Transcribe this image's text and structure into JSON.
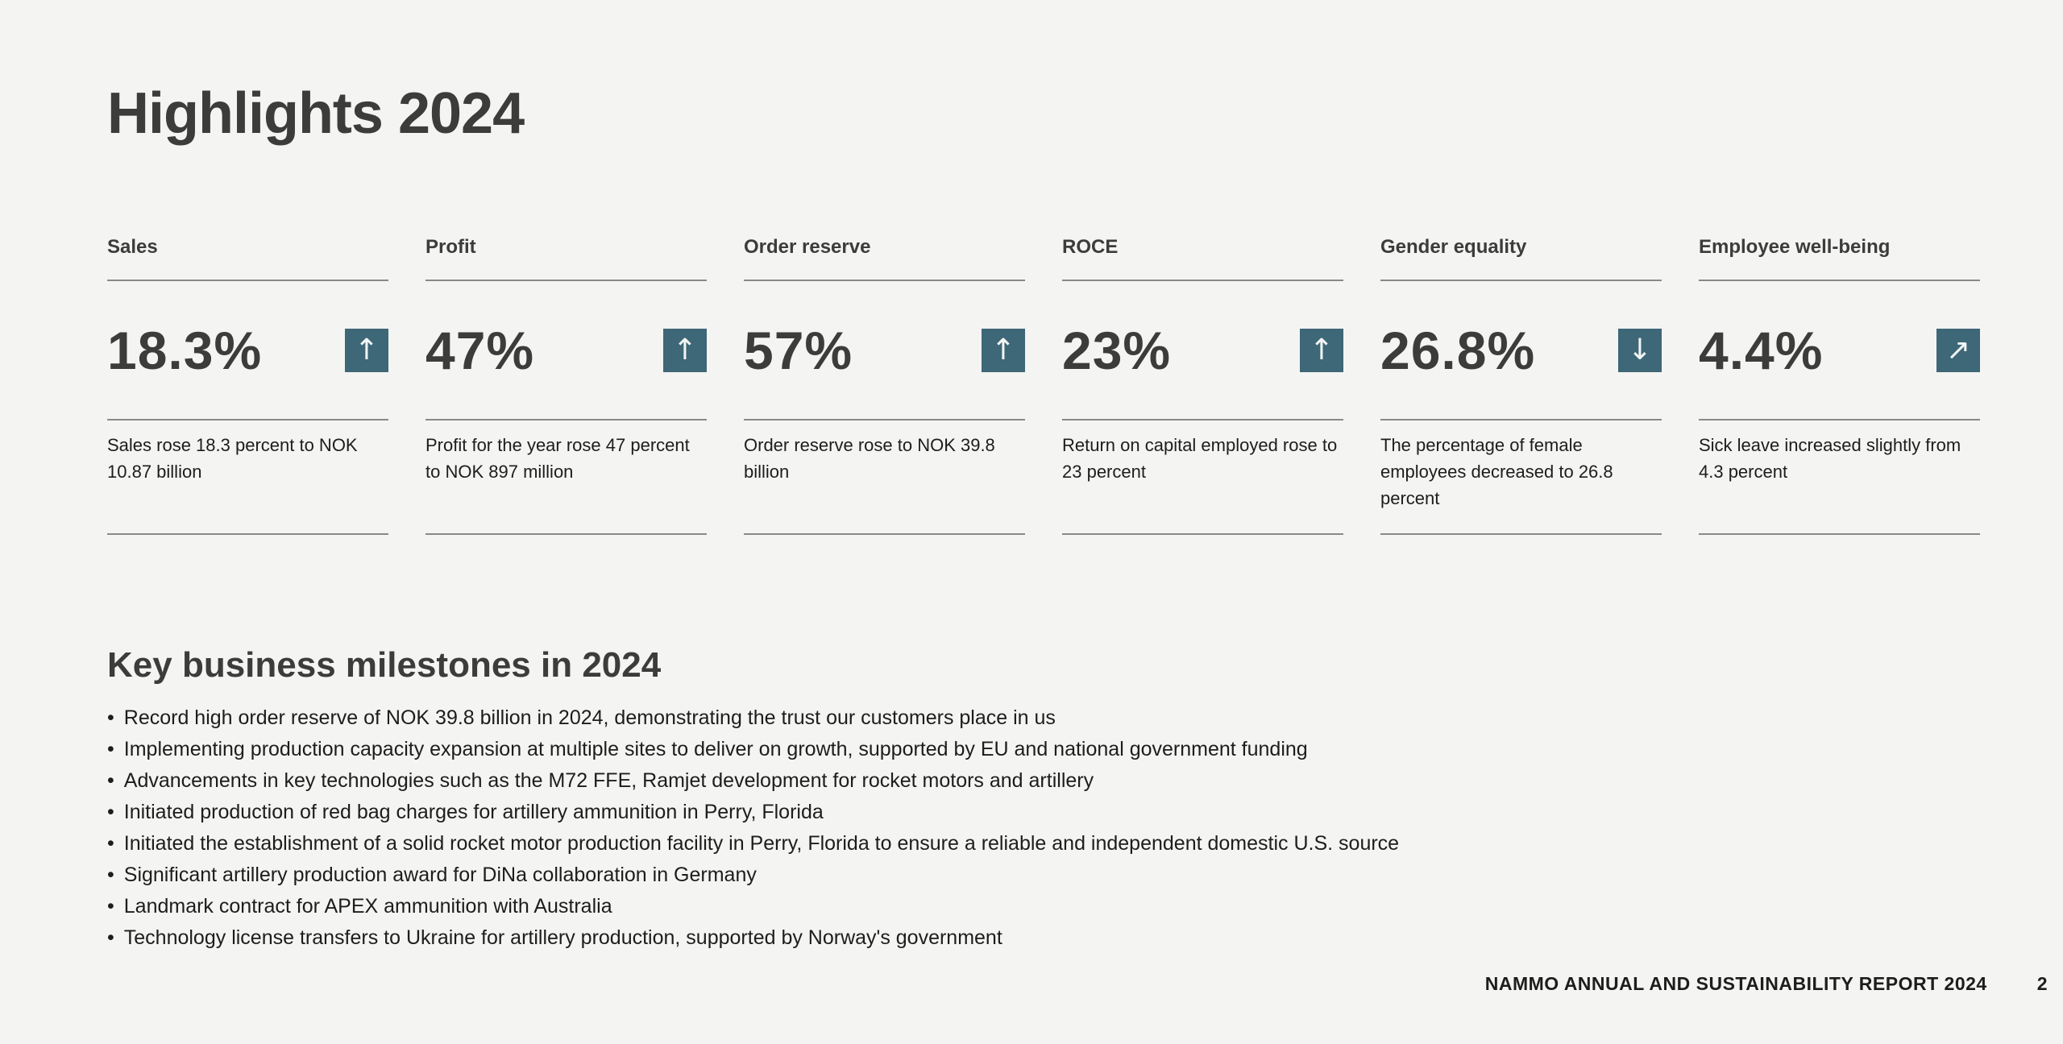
{
  "page": {
    "title": "Highlights 2024"
  },
  "colors": {
    "background": "#f4f4f3",
    "heading_text": "#3c3c3b",
    "body_text": "#1d1d1b",
    "accent_teal": "#3e6777",
    "divider_line": "#898987"
  },
  "stats": [
    {
      "label": "Sales",
      "value": "18.3%",
      "trend": "up",
      "arrow_glyph": "↑",
      "description": "Sales rose 18.3 percent to NOK 10.87 billion"
    },
    {
      "label": "Profit",
      "value": "47%",
      "trend": "up",
      "arrow_glyph": "↑",
      "description": "Profit for the year rose 47 percent to NOK 897 million"
    },
    {
      "label": "Order reserve",
      "value": "57%",
      "trend": "up",
      "arrow_glyph": "↑",
      "description": "Order reserve rose to NOK 39.8 billion"
    },
    {
      "label": "ROCE",
      "value": "23%",
      "trend": "up",
      "arrow_glyph": "↑",
      "description": "Return on capital employed rose to 23 percent"
    },
    {
      "label": "Gender equality",
      "value": "26.8%",
      "trend": "down",
      "arrow_glyph": "↓",
      "description": "The percentage of female employees decreased to 26.8 percent"
    },
    {
      "label": "Employee well-being",
      "value": "4.4%",
      "trend": "up-right",
      "arrow_glyph": "↗",
      "description": "Sick leave increased slightly from 4.3 percent"
    }
  ],
  "milestones": {
    "heading": "Key business milestones in 2024",
    "items": [
      "Record high order reserve of NOK 39.8 billion in 2024, demonstrating the trust our customers place in us",
      "Implementing production capacity expansion at multiple sites to deliver on growth, supported by EU and national government funding",
      "Advancements in key technologies such as the M72 FFE, Ramjet development for rocket motors and artillery",
      "Initiated production of red bag charges for artillery ammunition in Perry, Florida",
      "Initiated the establishment of a solid rocket motor production facility in Perry, Florida to ensure a reliable and independent domestic U.S. source",
      "Significant artillery production award for DiNa collaboration in Germany",
      "Landmark contract for APEX ammunition with Australia",
      "Technology license transfers to Ukraine for artillery production, supported by Norway's government"
    ]
  },
  "footer": {
    "report_name": "NAMMO ANNUAL AND SUSTAINABILITY REPORT 2024",
    "page_number": "2"
  }
}
